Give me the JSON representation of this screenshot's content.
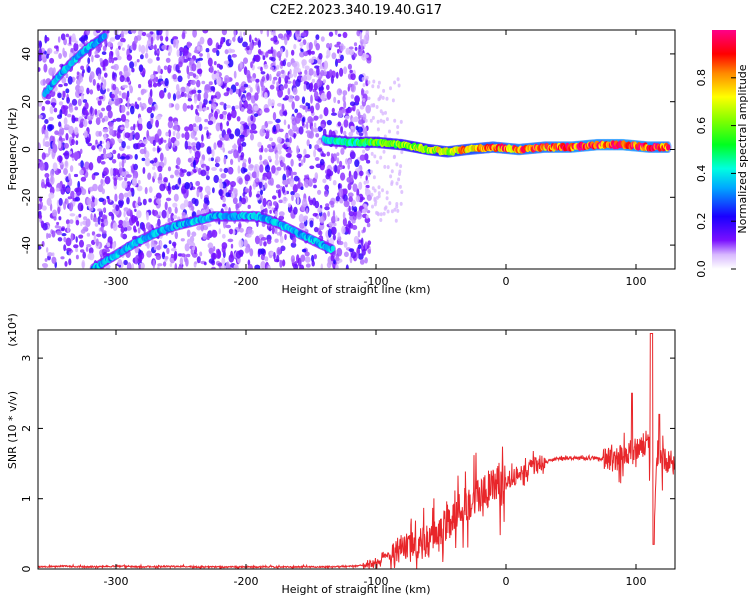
{
  "title": "C2E2.2023.340.19.40.G17",
  "chart_data": [
    {
      "type": "heatmap",
      "xlabel": "Height of straight line (km)",
      "ylabel": "Frequency (Hz)",
      "xlim": [
        -360,
        130
      ],
      "ylim": [
        -50,
        50
      ],
      "xticks": [
        -300,
        -200,
        -100,
        0,
        100
      ],
      "yticks": [
        -40,
        -20,
        0,
        20,
        40
      ],
      "colorbar": {
        "label": "Normalized spectral amplitude",
        "range": [
          0,
          1
        ],
        "ticks": [
          0.0,
          0.2,
          0.4,
          0.6,
          0.8
        ],
        "colormap": [
          "#ffffff",
          "#6a00ff",
          "#0000ff",
          "#00ffff",
          "#00ff00",
          "#ffff00",
          "#ff0000",
          "#ff0099"
        ]
      },
      "features": {
        "upper_arc": {
          "x": [
            -355,
            -345,
            -335,
            -325,
            -315,
            -308
          ],
          "y": [
            23,
            30,
            36,
            41,
            45,
            48
          ],
          "amplitude": 0.35
        },
        "lower_arc": {
          "x": [
            -318,
            -300,
            -285,
            -270,
            -255,
            -240,
            -225,
            -205,
            -190,
            -175,
            -160,
            -145,
            -133
          ],
          "y": [
            -50,
            -44,
            -39,
            -35,
            -32,
            -30,
            -28,
            -28,
            -28,
            -31,
            -35,
            -39,
            -42
          ],
          "amplitude": 0.35
        },
        "main_line": {
          "x": [
            -140,
            -120,
            -100,
            -80,
            -60,
            -45,
            -30,
            -10,
            10,
            30,
            50,
            70,
            90,
            110,
            125
          ],
          "y": [
            4,
            3,
            3,
            2,
            0,
            -1,
            0,
            1,
            0,
            1,
            1,
            2,
            2,
            1,
            1
          ],
          "amplitude": [
            0.4,
            0.45,
            0.55,
            0.6,
            0.65,
            0.7,
            0.75,
            0.8,
            0.85,
            0.85,
            0.9,
            0.9,
            0.92,
            0.9,
            0.85
          ]
        }
      }
    },
    {
      "type": "line",
      "xlabel": "Height of straight line (km)",
      "ylabel": "SNR (10 * v/v)",
      "yscale_label": "(x10⁴)",
      "xlim": [
        -360,
        130
      ],
      "ylim": [
        0,
        3.4
      ],
      "xticks": [
        -300,
        -200,
        -100,
        0,
        100
      ],
      "yticks": [
        0,
        1,
        2,
        3
      ],
      "color": "#e8262a",
      "series": [
        {
          "x": [
            -360,
            -340,
            -320,
            -300,
            -280,
            -260,
            -240,
            -220,
            -200,
            -180,
            -160,
            -140,
            -120,
            -110,
            -100,
            -90,
            -80,
            -70,
            -60,
            -50,
            -40,
            -30,
            -20,
            -10,
            0,
            10,
            20,
            30,
            40,
            50,
            60,
            70,
            80,
            90,
            100,
            105,
            110,
            113,
            116,
            120,
            125,
            130
          ],
          "y": [
            0.03,
            0.04,
            0.03,
            0.04,
            0.03,
            0.04,
            0.03,
            0.03,
            0.03,
            0.03,
            0.03,
            0.03,
            0.04,
            0.05,
            0.08,
            0.22,
            0.3,
            0.35,
            0.4,
            0.55,
            0.75,
            0.95,
            1.05,
            1.15,
            1.25,
            1.35,
            1.45,
            1.52,
            1.57,
            1.58,
            1.57,
            1.58,
            1.55,
            1.6,
            1.7,
            1.75,
            1.85,
            0.3,
            1.6,
            1.55,
            1.52,
            1.5
          ]
        }
      ]
    }
  ]
}
